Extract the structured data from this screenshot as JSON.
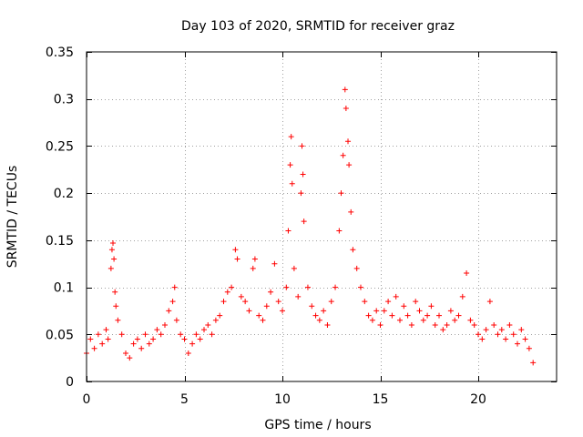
{
  "chart_data": {
    "type": "scatter",
    "title": "Day 103 of 2020, SRMTID for receiver graz",
    "xlabel": "GPS time / hours",
    "ylabel": "SRMTID / TECUs",
    "xlim": [
      0,
      24
    ],
    "ylim": [
      0,
      0.35
    ],
    "xticks": [
      0,
      5,
      10,
      15,
      20
    ],
    "xtick_labels": [
      "0",
      "5",
      "10",
      "15",
      "20"
    ],
    "yticks": [
      0,
      0.05,
      0.1,
      0.15,
      0.2,
      0.25,
      0.3,
      0.35
    ],
    "ytick_labels": [
      "0",
      "0.05",
      "0.1",
      "0.15",
      "0.2",
      "0.25",
      "0.3",
      "0.35"
    ],
    "grid": true,
    "marker": "+",
    "color": "#ff0000",
    "series": [
      {
        "name": "SRMTID",
        "points": [
          [
            0.0,
            0.03
          ],
          [
            0.2,
            0.045
          ],
          [
            0.4,
            0.035
          ],
          [
            0.6,
            0.05
          ],
          [
            0.8,
            0.04
          ],
          [
            1.0,
            0.055
          ],
          [
            1.1,
            0.045
          ],
          [
            1.25,
            0.12
          ],
          [
            1.3,
            0.14
          ],
          [
            1.35,
            0.147
          ],
          [
            1.4,
            0.13
          ],
          [
            1.45,
            0.095
          ],
          [
            1.5,
            0.08
          ],
          [
            1.6,
            0.065
          ],
          [
            1.8,
            0.05
          ],
          [
            2.0,
            0.03
          ],
          [
            2.2,
            0.025
          ],
          [
            2.4,
            0.04
          ],
          [
            2.6,
            0.045
          ],
          [
            2.8,
            0.035
          ],
          [
            3.0,
            0.05
          ],
          [
            3.2,
            0.04
          ],
          [
            3.4,
            0.045
          ],
          [
            3.6,
            0.055
          ],
          [
            3.8,
            0.05
          ],
          [
            4.0,
            0.06
          ],
          [
            4.2,
            0.075
          ],
          [
            4.4,
            0.085
          ],
          [
            4.5,
            0.1
          ],
          [
            4.6,
            0.065
          ],
          [
            4.8,
            0.05
          ],
          [
            5.0,
            0.045
          ],
          [
            5.2,
            0.03
          ],
          [
            5.4,
            0.04
          ],
          [
            5.6,
            0.05
          ],
          [
            5.8,
            0.045
          ],
          [
            6.0,
            0.055
          ],
          [
            6.2,
            0.06
          ],
          [
            6.4,
            0.05
          ],
          [
            6.6,
            0.065
          ],
          [
            6.8,
            0.07
          ],
          [
            7.0,
            0.085
          ],
          [
            7.2,
            0.095
          ],
          [
            7.4,
            0.1
          ],
          [
            7.6,
            0.14
          ],
          [
            7.7,
            0.13
          ],
          [
            7.9,
            0.09
          ],
          [
            8.1,
            0.085
          ],
          [
            8.3,
            0.075
          ],
          [
            8.5,
            0.12
          ],
          [
            8.6,
            0.13
          ],
          [
            8.8,
            0.07
          ],
          [
            9.0,
            0.065
          ],
          [
            9.2,
            0.08
          ],
          [
            9.4,
            0.095
          ],
          [
            9.6,
            0.125
          ],
          [
            9.8,
            0.085
          ],
          [
            10.0,
            0.075
          ],
          [
            10.2,
            0.1
          ],
          [
            10.3,
            0.16
          ],
          [
            10.4,
            0.23
          ],
          [
            10.45,
            0.26
          ],
          [
            10.5,
            0.21
          ],
          [
            10.6,
            0.12
          ],
          [
            10.8,
            0.09
          ],
          [
            10.95,
            0.2
          ],
          [
            11.0,
            0.25
          ],
          [
            11.05,
            0.22
          ],
          [
            11.1,
            0.17
          ],
          [
            11.3,
            0.1
          ],
          [
            11.5,
            0.08
          ],
          [
            11.7,
            0.07
          ],
          [
            11.9,
            0.065
          ],
          [
            12.1,
            0.075
          ],
          [
            12.3,
            0.06
          ],
          [
            12.5,
            0.085
          ],
          [
            12.7,
            0.1
          ],
          [
            12.9,
            0.16
          ],
          [
            13.0,
            0.2
          ],
          [
            13.1,
            0.24
          ],
          [
            13.2,
            0.31
          ],
          [
            13.25,
            0.29
          ],
          [
            13.35,
            0.255
          ],
          [
            13.4,
            0.23
          ],
          [
            13.5,
            0.18
          ],
          [
            13.6,
            0.14
          ],
          [
            13.8,
            0.12
          ],
          [
            14.0,
            0.1
          ],
          [
            14.2,
            0.085
          ],
          [
            14.4,
            0.07
          ],
          [
            14.6,
            0.065
          ],
          [
            14.8,
            0.075
          ],
          [
            15.0,
            0.06
          ],
          [
            15.2,
            0.075
          ],
          [
            15.4,
            0.085
          ],
          [
            15.6,
            0.07
          ],
          [
            15.8,
            0.09
          ],
          [
            16.0,
            0.065
          ],
          [
            16.2,
            0.08
          ],
          [
            16.4,
            0.07
          ],
          [
            16.6,
            0.06
          ],
          [
            16.8,
            0.085
          ],
          [
            17.0,
            0.075
          ],
          [
            17.2,
            0.065
          ],
          [
            17.4,
            0.07
          ],
          [
            17.6,
            0.08
          ],
          [
            17.8,
            0.06
          ],
          [
            18.0,
            0.07
          ],
          [
            18.2,
            0.055
          ],
          [
            18.4,
            0.06
          ],
          [
            18.6,
            0.075
          ],
          [
            18.8,
            0.065
          ],
          [
            19.0,
            0.07
          ],
          [
            19.2,
            0.09
          ],
          [
            19.4,
            0.115
          ],
          [
            19.6,
            0.065
          ],
          [
            19.8,
            0.06
          ],
          [
            20.0,
            0.05
          ],
          [
            20.2,
            0.045
          ],
          [
            20.4,
            0.055
          ],
          [
            20.6,
            0.085
          ],
          [
            20.8,
            0.06
          ],
          [
            21.0,
            0.05
          ],
          [
            21.2,
            0.055
          ],
          [
            21.4,
            0.045
          ],
          [
            21.6,
            0.06
          ],
          [
            21.8,
            0.05
          ],
          [
            22.0,
            0.04
          ],
          [
            22.2,
            0.055
          ],
          [
            22.4,
            0.045
          ],
          [
            22.6,
            0.035
          ],
          [
            22.8,
            0.02
          ]
        ]
      }
    ]
  }
}
